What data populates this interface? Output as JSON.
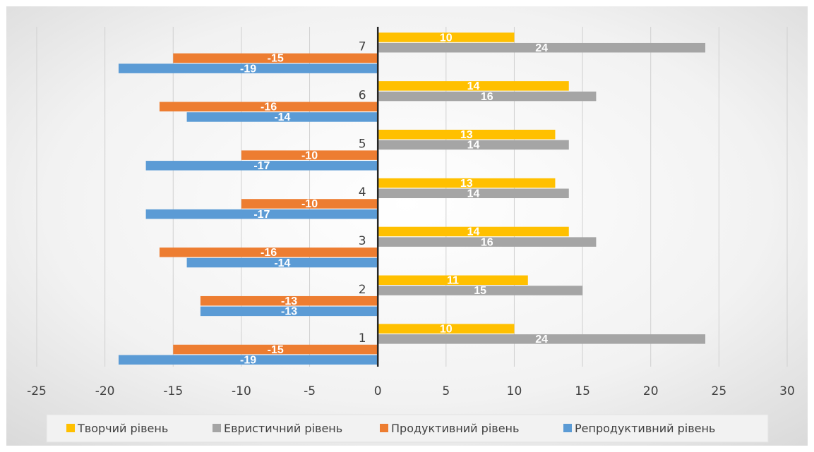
{
  "chart_data": {
    "type": "bar",
    "orientation": "horizontal",
    "categories": [
      "1",
      "2",
      "3",
      "4",
      "5",
      "6",
      "7"
    ],
    "series": [
      {
        "name": "Творчий рівень",
        "color": "#FFC000",
        "values": [
          10,
          11,
          14,
          13,
          13,
          14,
          10
        ]
      },
      {
        "name": "Евристичний рівень",
        "color": "#A5A5A5",
        "values": [
          24,
          15,
          16,
          14,
          14,
          16,
          24
        ]
      },
      {
        "name": "Продуктивний рівень",
        "color": "#ED7D31",
        "values": [
          -15,
          -13,
          -16,
          -10,
          -10,
          -16,
          -15
        ]
      },
      {
        "name": "Репродуктивний рівень",
        "color": "#5B9BD5",
        "values": [
          -19,
          -13,
          -14,
          -17,
          -17,
          -14,
          -19
        ]
      }
    ],
    "xlim": [
      -25,
      30
    ],
    "xticks": [
      "-25",
      "-20",
      "-15",
      "-10",
      "-5",
      "0",
      "5",
      "10",
      "15",
      "20",
      "25",
      "30"
    ],
    "grid": "vertical",
    "legend_position": "bottom",
    "background": "light gray radial gradient"
  }
}
